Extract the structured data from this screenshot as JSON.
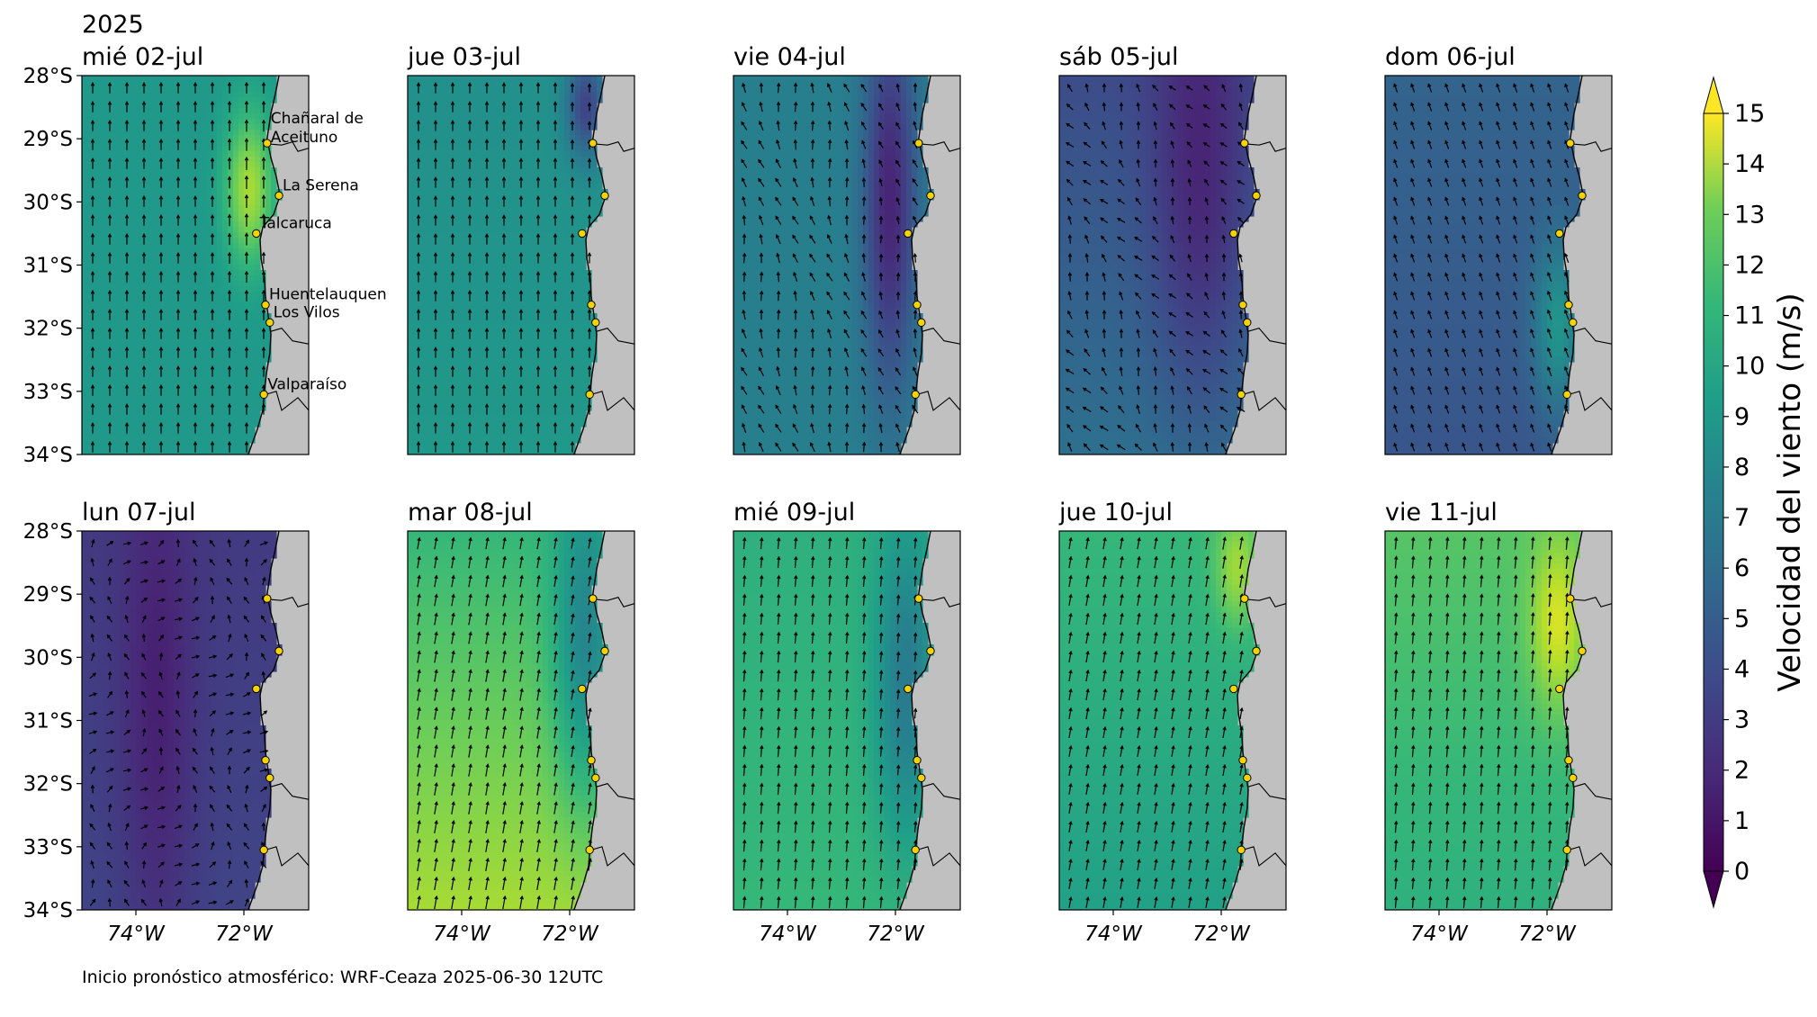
{
  "figure": {
    "year_label": "2025",
    "footer": "Inicio pronóstico atmosférico: WRF-Ceaza 2025-06-30 12UTC"
  },
  "map_extent": {
    "lon": [
      -75.0,
      -70.8
    ],
    "lat": [
      -34.0,
      -28.0
    ]
  },
  "lat_ticks": [
    {
      "value": -28,
      "label": "28°S"
    },
    {
      "value": -29,
      "label": "29°S"
    },
    {
      "value": -30,
      "label": "30°S"
    },
    {
      "value": -31,
      "label": "31°S"
    },
    {
      "value": -32,
      "label": "32°S"
    },
    {
      "value": -33,
      "label": "33°S"
    },
    {
      "value": -34,
      "label": "34°S"
    }
  ],
  "lon_ticks": [
    {
      "value": -74,
      "label": "74°W"
    },
    {
      "value": -72,
      "label": "72°W"
    }
  ],
  "cities": [
    {
      "name": "Chañaral de Aceituno",
      "lines": [
        "Chañaral de",
        "Aceituno"
      ],
      "lon": -71.57,
      "lat": -29.07
    },
    {
      "name": "La Serena",
      "lines": [
        "La Serena"
      ],
      "lon": -71.35,
      "lat": -29.9
    },
    {
      "name": "Talcaruca",
      "lines": [
        "Talcaruca"
      ],
      "lon": -71.77,
      "lat": -30.5
    },
    {
      "name": "Huentelauquen",
      "lines": [
        "Huentelauquen"
      ],
      "lon": -71.6,
      "lat": -31.63
    },
    {
      "name": "Los Vilos",
      "lines": [
        "Los Vilos"
      ],
      "lon": -71.52,
      "lat": -31.91
    },
    {
      "name": "Valparaíso",
      "lines": [
        "Valparaíso"
      ],
      "lon": -71.63,
      "lat": -33.05
    }
  ],
  "coastline": [
    [
      -71.35,
      -28.0
    ],
    [
      -71.42,
      -28.3
    ],
    [
      -71.5,
      -28.6
    ],
    [
      -71.57,
      -29.0
    ],
    [
      -71.5,
      -29.3
    ],
    [
      -71.4,
      -29.6
    ],
    [
      -71.33,
      -29.9
    ],
    [
      -71.45,
      -30.2
    ],
    [
      -71.65,
      -30.4
    ],
    [
      -71.7,
      -30.6
    ],
    [
      -71.68,
      -30.9
    ],
    [
      -71.62,
      -31.2
    ],
    [
      -71.6,
      -31.5
    ],
    [
      -71.55,
      -31.8
    ],
    [
      -71.5,
      -32.1
    ],
    [
      -71.52,
      -32.4
    ],
    [
      -71.58,
      -32.7
    ],
    [
      -71.62,
      -33.0
    ],
    [
      -71.65,
      -33.3
    ],
    [
      -71.75,
      -33.6
    ],
    [
      -71.92,
      -34.0
    ]
  ],
  "borders": [
    [
      [
        -71.57,
        -29.08
      ],
      [
        -71.3,
        -29.1
      ],
      [
        -71.1,
        -29.05
      ],
      [
        -71.0,
        -29.2
      ],
      [
        -70.8,
        -29.15
      ]
    ],
    [
      [
        -71.5,
        -32.05
      ],
      [
        -71.3,
        -32.0
      ],
      [
        -71.1,
        -32.2
      ],
      [
        -70.8,
        -32.25
      ]
    ],
    [
      [
        -71.6,
        -33.05
      ],
      [
        -71.4,
        -33.0
      ],
      [
        -71.3,
        -33.3
      ],
      [
        -71.0,
        -33.1
      ],
      [
        -70.8,
        -33.3
      ]
    ]
  ],
  "land_color": "#c0c0c0",
  "colormap": "viridis",
  "colorbar": {
    "label": "Velocidad del viento (m/s)",
    "min": 0,
    "max": 15,
    "extend": "both",
    "ticks": [
      "0",
      "1",
      "2",
      "3",
      "4",
      "5",
      "6",
      "7",
      "8",
      "9",
      "10",
      "11",
      "12",
      "13",
      "14",
      "15"
    ]
  },
  "panels": [
    {
      "date": "mié 02-jul",
      "row": 0,
      "col": 0,
      "show_year": true,
      "show_city_labels": true,
      "field": {
        "base": 8.0,
        "trend": 0,
        "coast_peak": 5.0,
        "coast_lat": -29.8,
        "coast_spread": 1.2,
        "core_lon": -71.9,
        "core_width": 0.45,
        "core_delta": 0,
        "core_lat": -31.0,
        "core_lat_spread": 10,
        "coast_mode": "peak",
        "wind_dir_deg": 180,
        "turning": 0
      }
    },
    {
      "date": "jue 03-jul",
      "row": 0,
      "col": 1,
      "show_year": false,
      "show_city_labels": false,
      "field": {
        "base": 7.5,
        "trend": 0.5,
        "coast_peak": 3.0,
        "coast_lat": -31.5,
        "coast_spread": 1.5,
        "core_lon": -71.7,
        "core_width": 0.35,
        "core_delta": -4.5,
        "core_lat": -28.5,
        "core_lat_spread": 0.8,
        "coast_mode": "dip_north",
        "wind_dir_deg": 180,
        "turning": 0
      }
    },
    {
      "date": "vie 04-jul",
      "row": 0,
      "col": 2,
      "show_year": false,
      "show_city_labels": false,
      "field": {
        "base": 6.5,
        "trend": 0,
        "coast_peak": 0,
        "coast_lat": -31.0,
        "coast_spread": 3,
        "core_lon": -72.1,
        "core_width": 0.5,
        "core_delta": -5.0,
        "core_lat": -30.0,
        "core_lat_spread": 3.0,
        "coast_mode": "minimum",
        "wind_dir_deg": 165,
        "turning": 20
      }
    },
    {
      "date": "sáb 05-jul",
      "row": 0,
      "col": 3,
      "show_year": false,
      "show_city_labels": false,
      "field": {
        "base": 3.5,
        "trend": 2.0,
        "coast_peak": 0,
        "coast_lat": -31.0,
        "coast_spread": 3,
        "core_lon": -72.4,
        "core_width": 0.9,
        "core_delta": -2.5,
        "core_lat": -30.0,
        "core_lat_spread": 3.5,
        "coast_mode": "minimum",
        "wind_dir_deg": 150,
        "turning": 30
      }
    },
    {
      "date": "dom 06-jul",
      "row": 0,
      "col": 4,
      "show_year": false,
      "show_city_labels": false,
      "field": {
        "base": 4.8,
        "trend": -0.8,
        "coast_peak": 3.5,
        "coast_lat": -32.0,
        "coast_spread": 1.3,
        "core_lon": -71.8,
        "core_width": 0.45,
        "core_delta": 0,
        "core_lat": -31.0,
        "core_lat_spread": 10,
        "coast_mode": "peak",
        "wind_dir_deg": 160,
        "turning": 0
      }
    },
    {
      "date": "lun 07-jul",
      "row": 1,
      "col": 0,
      "show_year": false,
      "show_city_labels": false,
      "field": {
        "base": 2.6,
        "trend": 0.5,
        "coast_peak": 0,
        "coast_lat": -31.0,
        "coast_spread": 3,
        "core_lon": -73.6,
        "core_width": 0.7,
        "core_delta": -1.5,
        "core_lat": -31.0,
        "core_lat_spread": 4.0,
        "coast_mode": "minimum",
        "wind_dir_deg": 200,
        "turning": 60
      }
    },
    {
      "date": "mar 08-jul",
      "row": 1,
      "col": 1,
      "show_year": false,
      "show_city_labels": false,
      "field": {
        "base": 10.0,
        "trend": 3.0,
        "coast_peak": 0,
        "coast_lat": -31.0,
        "coast_spread": 3,
        "core_lon": -71.7,
        "core_width": 0.6,
        "core_delta": -4.0,
        "core_lat": -30.0,
        "core_lat_spread": 2.5,
        "coast_mode": "minimum",
        "wind_dir_deg": 190,
        "turning": 0
      }
    },
    {
      "date": "mié 09-jul",
      "row": 1,
      "col": 2,
      "show_year": false,
      "show_city_labels": false,
      "field": {
        "base": 9.5,
        "trend": 0.5,
        "coast_peak": 0,
        "coast_lat": -31.0,
        "coast_spread": 3,
        "core_lon": -71.8,
        "core_width": 0.6,
        "core_delta": -3.5,
        "core_lat": -30.5,
        "core_lat_spread": 2.5,
        "coast_mode": "minimum",
        "wind_dir_deg": 185,
        "turning": 0
      }
    },
    {
      "date": "jue 10-jul",
      "row": 1,
      "col": 3,
      "show_year": false,
      "show_city_labels": false,
      "field": {
        "base": 10.0,
        "trend": -1.5,
        "coast_peak": 3.0,
        "coast_lat": -28.6,
        "coast_spread": 0.9,
        "core_lon": -71.7,
        "core_width": 0.4,
        "core_delta": 0,
        "core_lat": -31.0,
        "core_lat_spread": 10,
        "coast_mode": "peak",
        "wind_dir_deg": 190,
        "turning": 0
      }
    },
    {
      "date": "vie 11-jul",
      "row": 1,
      "col": 4,
      "show_year": false,
      "show_city_labels": false,
      "field": {
        "base": 11.0,
        "trend": -1.5,
        "coast_peak": 3.5,
        "coast_lat": -29.5,
        "coast_spread": 1.3,
        "core_lon": -71.8,
        "core_width": 0.5,
        "core_delta": 0,
        "core_lat": -31.0,
        "core_lat_spread": 10,
        "coast_mode": "peak",
        "wind_dir_deg": 185,
        "turning": 0
      }
    }
  ]
}
